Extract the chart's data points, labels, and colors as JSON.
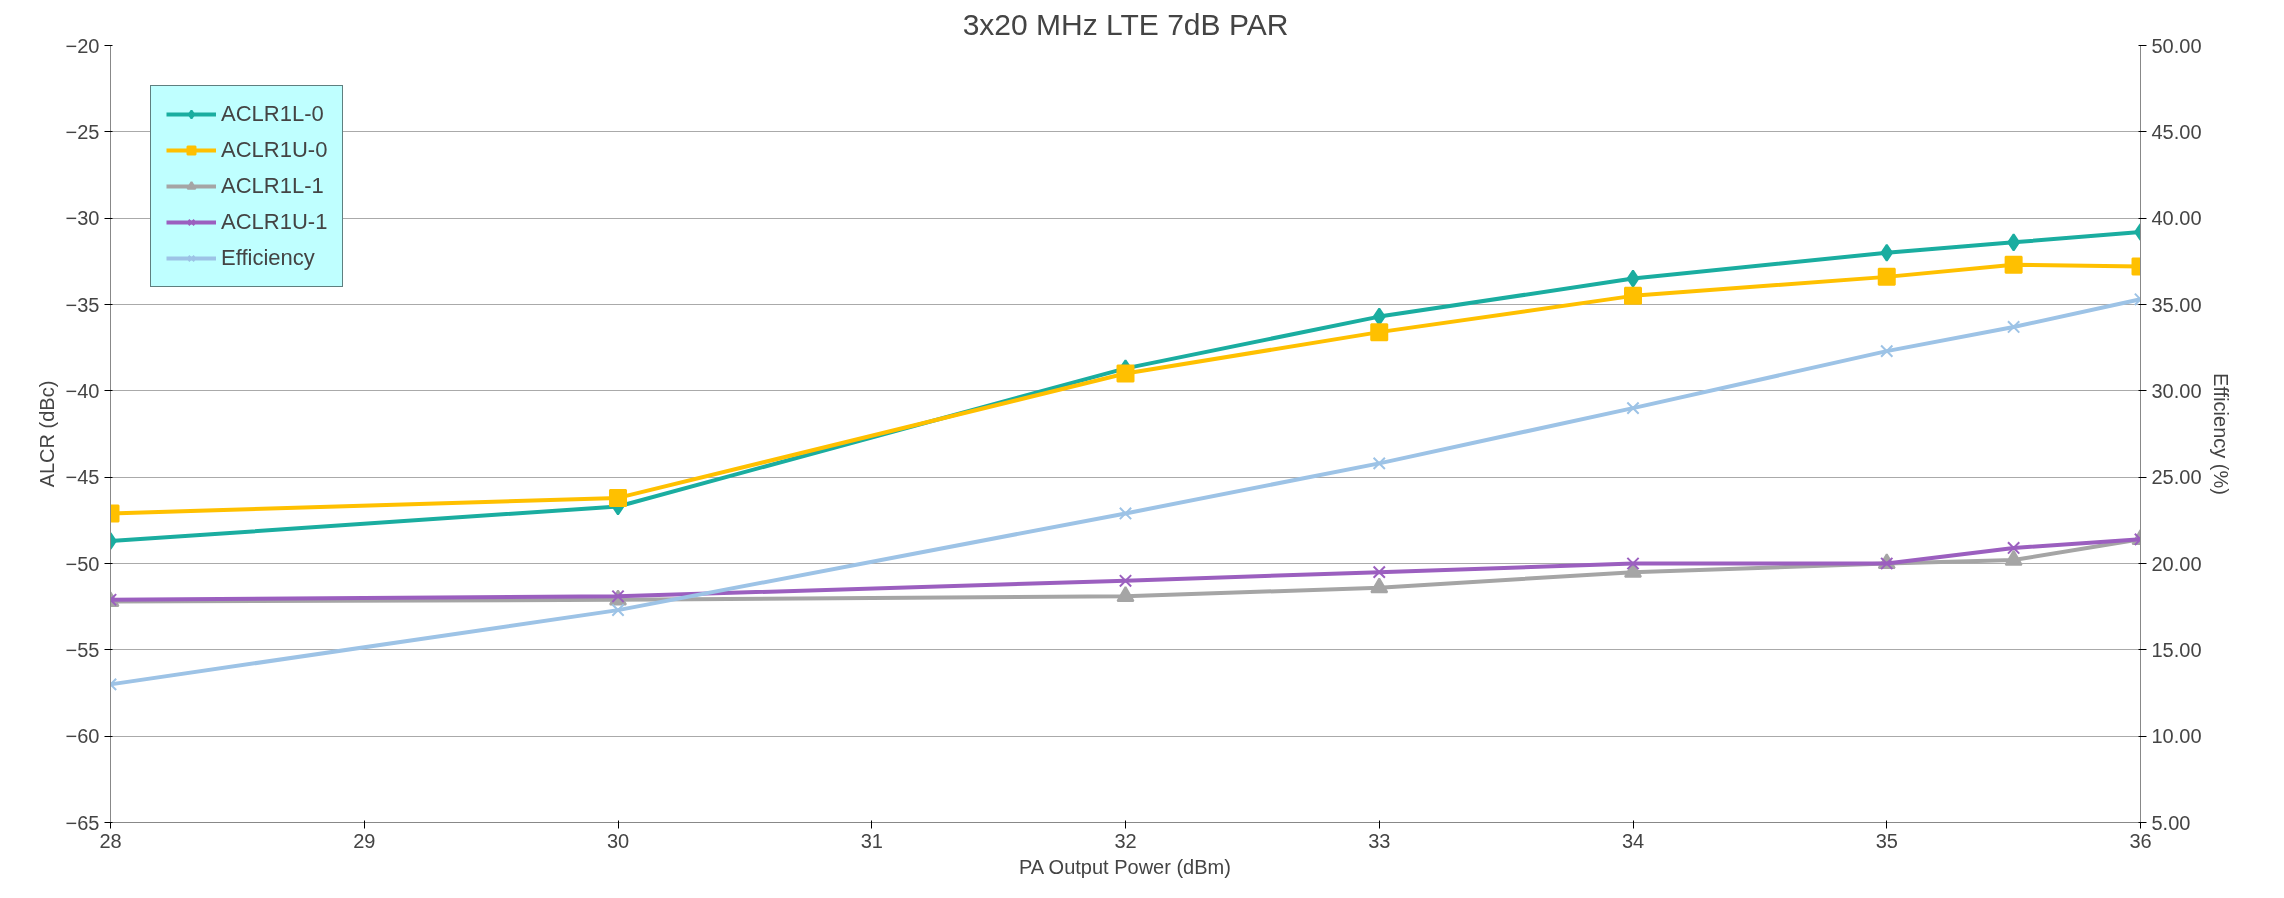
{
  "chart_data": {
    "type": "line",
    "title": "3x20 MHz LTE 7dB PAR",
    "xlabel": "PA Output Power (dBm)",
    "ylabel": "ALCR (dBc)",
    "y2label": "Efficiency (%)",
    "x": [
      28,
      30,
      32,
      33,
      34,
      35,
      35.5,
      36
    ],
    "xlim": [
      28,
      36
    ],
    "xticks": [
      28,
      29,
      30,
      31,
      32,
      33,
      34,
      35,
      36
    ],
    "ylim": [
      -65,
      -20
    ],
    "yticks": [
      -65,
      -60,
      -55,
      -50,
      -45,
      -40,
      -35,
      -30,
      -25,
      -20
    ],
    "y2lim": [
      5,
      50
    ],
    "y2ticks": [
      {
        "value": 5,
        "label": "5.00"
      },
      {
        "value": 10,
        "label": "10.00"
      },
      {
        "value": 15,
        "label": "15.00"
      },
      {
        "value": 20,
        "label": "20.00"
      },
      {
        "value": 25,
        "label": "25.00"
      },
      {
        "value": 30,
        "label": "30.00"
      },
      {
        "value": 35,
        "label": "35.00"
      },
      {
        "value": 40,
        "label": "40.00"
      },
      {
        "value": 45,
        "label": "45.00"
      },
      {
        "value": 50,
        "label": "50.00"
      }
    ],
    "grid": "y",
    "legend": "top left",
    "line_style": "solid",
    "series": [
      {
        "name": "ACLR1L-0",
        "color": "#1aada0",
        "marker": "diamond",
        "values": [
          -48.7,
          -46.7,
          -38.7,
          -35.7,
          -33.5,
          -32.0,
          -31.4,
          -30.8
        ]
      },
      {
        "name": "ACLR1U-0",
        "color": "#ffc000",
        "marker": "square",
        "values": [
          -47.1,
          -46.2,
          -39.0,
          -36.6,
          -34.5,
          -33.4,
          -32.7,
          -32.8
        ]
      },
      {
        "name": "ACLR1L-1",
        "color": "#a5a5a5",
        "marker": "triangle",
        "values": [
          -52.2,
          -52.1,
          -51.9,
          -51.4,
          -50.5,
          -50.0,
          -49.8,
          -48.6
        ]
      },
      {
        "name": "ACLR1U-1",
        "color": "#9b5fbf",
        "marker": "cross",
        "values": [
          -52.1,
          -51.9,
          -51.0,
          -50.5,
          -50.0,
          -50.0,
          -49.1,
          -48.6
        ]
      },
      {
        "name": "Efficiency",
        "color": "#9dc3e6",
        "marker": "cross",
        "axis": "y2",
        "values": [
          13.0,
          17.3,
          22.9,
          25.8,
          29.0,
          32.3,
          33.7,
          35.3
        ]
      }
    ]
  }
}
